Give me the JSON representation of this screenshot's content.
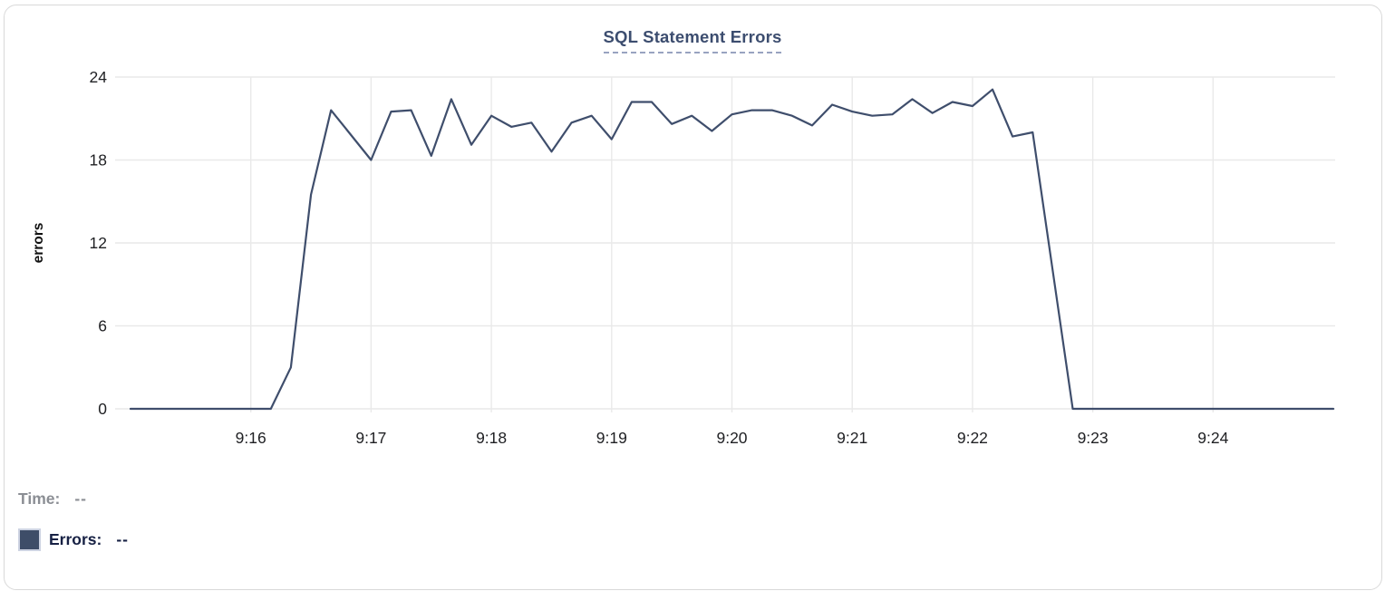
{
  "chart_data": {
    "type": "line",
    "title": "SQL Statement Errors",
    "ylabel": "errors",
    "series_name": "Errors",
    "line_color": "#3f4e6c",
    "grid_color": "#e9e9e9",
    "tick_text_color": "#202124",
    "ylim": [
      0,
      24
    ],
    "y_ticks": [
      0,
      6,
      12,
      18,
      24
    ],
    "x_range_seconds": [
      0,
      600
    ],
    "x_tick_seconds": [
      60,
      120,
      180,
      240,
      300,
      360,
      420,
      480,
      540
    ],
    "x_tick_labels": [
      "9:16",
      "9:17",
      "9:18",
      "9:19",
      "9:20",
      "9:21",
      "9:22",
      "9:23",
      "9:24"
    ],
    "grid": true,
    "legend_position": "bottom-left",
    "times": [
      "9:15:00",
      "9:15:10",
      "9:15:20",
      "9:15:30",
      "9:15:40",
      "9:15:50",
      "9:16:00",
      "9:16:10",
      "9:16:20",
      "9:16:30",
      "9:16:40",
      "9:16:50",
      "9:17:00",
      "9:17:10",
      "9:17:20",
      "9:17:30",
      "9:17:40",
      "9:17:50",
      "9:18:00",
      "9:18:10",
      "9:18:20",
      "9:18:30",
      "9:18:40",
      "9:18:50",
      "9:19:00",
      "9:19:10",
      "9:19:20",
      "9:19:30",
      "9:19:40",
      "9:19:50",
      "9:20:00",
      "9:20:10",
      "9:20:20",
      "9:20:30",
      "9:20:40",
      "9:20:50",
      "9:21:00",
      "9:21:10",
      "9:21:20",
      "9:21:30",
      "9:21:40",
      "9:21:50",
      "9:22:00",
      "9:22:10",
      "9:22:20",
      "9:22:30",
      "9:22:40",
      "9:22:50",
      "9:23:00",
      "9:23:10",
      "9:23:20",
      "9:23:30",
      "9:23:40",
      "9:23:50",
      "9:24:00",
      "9:24:10",
      "9:24:20",
      "9:24:30",
      "9:24:40",
      "9:24:50",
      "9:25:00"
    ],
    "values": [
      0,
      0,
      0,
      0,
      0,
      0,
      0,
      0,
      3,
      15.5,
      21.6,
      19.8,
      18,
      21.5,
      21.6,
      18.3,
      22.4,
      19.1,
      21.2,
      20.4,
      20.7,
      18.6,
      20.7,
      21.2,
      19.5,
      22.2,
      22.2,
      20.6,
      21.2,
      20.1,
      21.3,
      21.6,
      21.6,
      21.2,
      20.5,
      22,
      21.5,
      21.2,
      21.3,
      22.4,
      21.4,
      22.2,
      21.9,
      23.1,
      19.7,
      20,
      10,
      0,
      0,
      0,
      0,
      0,
      0,
      0,
      0,
      0,
      0,
      0,
      0,
      0,
      0
    ]
  },
  "readout": {
    "time_label": "Time:",
    "time_value": "--",
    "errors_label": "Errors:",
    "errors_value": "--",
    "swatch_color": "#3e4d68"
  }
}
